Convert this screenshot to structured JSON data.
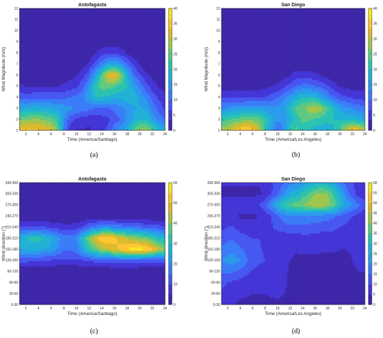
{
  "chart_data": [
    {
      "type": "contour",
      "panel": "(a)",
      "title": "Antofagasta",
      "xlabel": "Time (America/Santiago)",
      "ylabel": "Wind Magnitude (m/s)",
      "xlim": [
        1,
        24
      ],
      "ylim": [
        1,
        12
      ],
      "xticks": [
        "2",
        "4",
        "6",
        "8",
        "10",
        "12",
        "14",
        "16",
        "18",
        "20",
        "22",
        "24"
      ],
      "yticks": [
        "1",
        "2",
        "3",
        "4",
        "5",
        "6",
        "7",
        "8",
        "9",
        "10",
        "11",
        "12"
      ],
      "colorbar": {
        "min": 0,
        "max": 40,
        "ticks": [
          "0",
          "5",
          "10",
          "15",
          "20",
          "25",
          "30",
          "35",
          "40"
        ]
      },
      "z_approx": [
        {
          "y": 1.5,
          "values": [
            34,
            35,
            35,
            34,
            33,
            32,
            26,
            12,
            5,
            3,
            3,
            3,
            4,
            5,
            8,
            12,
            15,
            18,
            24,
            28,
            28,
            24,
            20,
            18
          ]
        },
        {
          "y": 2.5,
          "values": [
            26,
            26,
            27,
            27,
            26,
            25,
            22,
            14,
            8,
            6,
            5,
            4,
            4,
            5,
            6,
            8,
            10,
            14,
            17,
            20,
            20,
            16,
            12,
            10
          ]
        },
        {
          "y": 3.5,
          "values": [
            18,
            17,
            18,
            18,
            17,
            17,
            16,
            15,
            14,
            13,
            12,
            11,
            10,
            10,
            10,
            11,
            12,
            14,
            16,
            17,
            16,
            12,
            9,
            6
          ]
        },
        {
          "y": 4.5,
          "values": [
            9,
            8,
            9,
            9,
            9,
            9,
            9,
            9,
            10,
            11,
            13,
            16,
            20,
            20,
            19,
            18,
            18,
            19,
            19,
            16,
            13,
            9,
            6,
            4
          ]
        },
        {
          "y": 5.5,
          "values": [
            4,
            3,
            3,
            3,
            3,
            3,
            3,
            4,
            5,
            6,
            9,
            14,
            22,
            25,
            25,
            24,
            22,
            20,
            16,
            12,
            8,
            5,
            3,
            2
          ]
        },
        {
          "y": 6.5,
          "values": [
            1,
            1,
            1,
            1,
            1,
            1,
            1,
            1,
            2,
            3,
            5,
            9,
            16,
            24,
            32,
            34,
            28,
            18,
            11,
            7,
            4,
            2,
            1,
            1
          ]
        },
        {
          "y": 7.5,
          "values": [
            0,
            0,
            0,
            0,
            0,
            0,
            0,
            0,
            1,
            1,
            2,
            4,
            8,
            12,
            16,
            17,
            14,
            10,
            6,
            3,
            1,
            1,
            0,
            0
          ]
        },
        {
          "y": 8.5,
          "values": [
            0,
            0,
            0,
            0,
            0,
            0,
            0,
            0,
            0,
            0,
            1,
            1,
            3,
            5,
            6,
            6,
            5,
            3,
            1,
            1,
            0,
            0,
            0,
            0
          ]
        },
        {
          "y": 9.5,
          "values": [
            0,
            0,
            0,
            0,
            0,
            0,
            0,
            0,
            0,
            0,
            0,
            0,
            1,
            1,
            1,
            1,
            1,
            1,
            0,
            0,
            0,
            0,
            0,
            0
          ]
        }
      ]
    },
    {
      "type": "contour",
      "panel": "(b)",
      "title": "San Diego",
      "xlabel": "Time (America/Los Angeles)",
      "ylabel": "Wind Magnitude (m/s)",
      "xlim": [
        1,
        24
      ],
      "ylim": [
        1,
        12
      ],
      "xticks": [
        "2",
        "4",
        "6",
        "8",
        "10",
        "12",
        "14",
        "16",
        "18",
        "20",
        "22",
        "24"
      ],
      "yticks": [
        "1",
        "2",
        "3",
        "4",
        "5",
        "6",
        "7",
        "8",
        "9",
        "10",
        "11",
        "12"
      ],
      "colorbar": {
        "min": 0,
        "max": 40,
        "ticks": [
          "0",
          "5",
          "10",
          "15",
          "20",
          "25",
          "30",
          "35",
          "40"
        ]
      },
      "z_approx": [
        {
          "y": 1.5,
          "values": [
            28,
            30,
            33,
            36,
            37,
            35,
            30,
            22,
            14,
            10,
            14,
            22,
            24,
            22,
            20,
            18,
            18,
            18,
            20,
            24,
            30,
            35,
            34,
            30
          ]
        },
        {
          "y": 2.5,
          "values": [
            22,
            23,
            24,
            25,
            26,
            26,
            25,
            22,
            18,
            14,
            14,
            18,
            22,
            24,
            24,
            23,
            22,
            21,
            20,
            20,
            20,
            19,
            18,
            16
          ]
        },
        {
          "y": 3.5,
          "values": [
            14,
            14,
            15,
            15,
            16,
            16,
            16,
            15,
            14,
            14,
            16,
            20,
            24,
            26,
            28,
            30,
            28,
            24,
            20,
            16,
            14,
            13,
            12,
            11
          ]
        },
        {
          "y": 4.5,
          "values": [
            6,
            6,
            6,
            6,
            6,
            6,
            6,
            7,
            8,
            10,
            12,
            15,
            18,
            20,
            20,
            19,
            16,
            13,
            10,
            8,
            7,
            6,
            6,
            5
          ]
        },
        {
          "y": 5.5,
          "values": [
            2,
            2,
            2,
            2,
            2,
            2,
            2,
            2,
            3,
            4,
            6,
            8,
            10,
            11,
            11,
            10,
            9,
            7,
            5,
            3,
            2,
            2,
            2,
            2
          ]
        },
        {
          "y": 6.5,
          "values": [
            0,
            0,
            0,
            0,
            0,
            0,
            0,
            0,
            1,
            1,
            2,
            3,
            5,
            5,
            5,
            4,
            3,
            2,
            1,
            1,
            0,
            0,
            0,
            0
          ]
        },
        {
          "y": 7.5,
          "values": [
            0,
            0,
            0,
            0,
            0,
            0,
            0,
            0,
            0,
            0,
            1,
            1,
            1,
            1,
            1,
            1,
            1,
            0,
            0,
            0,
            0,
            0,
            0,
            0
          ]
        }
      ]
    },
    {
      "type": "contour",
      "panel": "(c)",
      "title": "Antofagasta",
      "xlabel": "Time (America/Santiago)",
      "ylabel": "Wind direction (°)",
      "xlim": [
        1,
        24
      ],
      "xticks": [
        "2",
        "4",
        "6",
        "8",
        "10",
        "12",
        "14",
        "16",
        "18",
        "20",
        "22",
        "24"
      ],
      "yticks": [
        "0-30",
        "30-60",
        "60-90",
        "90-120",
        "120-150",
        "150-180",
        "180-210",
        "210-240",
        "240-270",
        "270-300",
        "300-330",
        "330-360"
      ],
      "colorbar": {
        "min": 0,
        "max": 60,
        "ticks": [
          "0",
          "10",
          "20",
          "30",
          "40",
          "50",
          "60"
        ]
      },
      "z_approx": [
        {
          "y": "120-150",
          "values": [
            12,
            12,
            11,
            11,
            10,
            10,
            9,
            9,
            9,
            9,
            10,
            11,
            12,
            13,
            13,
            14,
            14,
            14,
            14,
            13,
            12,
            12,
            12,
            12
          ]
        },
        {
          "y": "150-180",
          "values": [
            25,
            26,
            26,
            26,
            25,
            24,
            20,
            16,
            15,
            18,
            25,
            32,
            38,
            42,
            46,
            48,
            52,
            56,
            58,
            58,
            56,
            52,
            45,
            40
          ]
        },
        {
          "y": "180-210",
          "values": [
            28,
            30,
            32,
            32,
            30,
            26,
            22,
            18,
            17,
            20,
            30,
            40,
            48,
            54,
            55,
            52,
            48,
            44,
            42,
            40,
            38,
            34,
            30,
            28
          ]
        },
        {
          "y": "210-240",
          "values": [
            10,
            10,
            10,
            10,
            10,
            9,
            8,
            7,
            7,
            8,
            11,
            15,
            18,
            20,
            20,
            19,
            18,
            17,
            16,
            15,
            14,
            13,
            12,
            11
          ]
        }
      ]
    },
    {
      "type": "contour",
      "panel": "(d)",
      "title": "San Diego",
      "xlabel": "Time (America/Los Angeles)",
      "ylabel": "Wind direction (°)",
      "xlim": [
        1,
        24
      ],
      "xticks": [
        "2",
        "4",
        "6",
        "8",
        "10",
        "12",
        "14",
        "16",
        "18",
        "20",
        "22",
        "24"
      ],
      "yticks": [
        "0-30",
        "30-60",
        "60-90",
        "90-120",
        "120-150",
        "150-180",
        "180-210",
        "210-240",
        "240-270",
        "270-300",
        "300-330",
        "330-360"
      ],
      "colorbar": {
        "min": 0,
        "max": 60,
        "ticks": [
          "0",
          "5",
          "10",
          "15",
          "20",
          "25",
          "30",
          "35",
          "40",
          "45",
          "50",
          "55",
          "60"
        ]
      },
      "z_approx": [
        {
          "y": "0-30",
          "values": [
            5,
            5,
            5,
            4,
            4,
            4,
            4,
            4,
            4,
            4,
            4,
            4,
            4,
            4,
            4,
            4,
            4,
            4,
            4,
            4,
            4,
            4,
            4,
            4
          ]
        },
        {
          "y": "60-90",
          "values": [
            12,
            10,
            9,
            8,
            7,
            6,
            6,
            6,
            7,
            8,
            6,
            4,
            4,
            4,
            4,
            4,
            4,
            4,
            4,
            4,
            4,
            4,
            4,
            4
          ]
        },
        {
          "y": "120-150",
          "values": [
            20,
            22,
            22,
            20,
            16,
            13,
            11,
            10,
            10,
            9,
            6,
            5,
            4,
            4,
            4,
            4,
            4,
            4,
            4,
            4,
            4,
            5,
            6,
            6
          ]
        },
        {
          "y": "180-210",
          "values": [
            12,
            14,
            14,
            12,
            11,
            10,
            10,
            9,
            9,
            8,
            7,
            7,
            7,
            8,
            8,
            8,
            7,
            7,
            7,
            6,
            6,
            6,
            6,
            6
          ]
        },
        {
          "y": "240-270",
          "values": [
            6,
            6,
            6,
            4,
            4,
            4,
            5,
            7,
            10,
            14,
            18,
            20,
            20,
            20,
            19,
            18,
            18,
            17,
            16,
            14,
            12,
            10,
            8,
            6
          ]
        },
        {
          "y": "270-300",
          "values": [
            8,
            8,
            8,
            8,
            8,
            9,
            10,
            14,
            20,
            28,
            34,
            36,
            38,
            40,
            42,
            44,
            44,
            42,
            38,
            30,
            24,
            20,
            16,
            12
          ]
        },
        {
          "y": "300-330",
          "values": [
            4,
            4,
            4,
            4,
            4,
            4,
            4,
            6,
            10,
            14,
            20,
            26,
            28,
            32,
            36,
            40,
            42,
            40,
            34,
            26,
            18,
            12,
            8,
            6
          ]
        }
      ]
    }
  ],
  "captions": [
    "(a)",
    "(b)",
    "(c)",
    "(d)"
  ],
  "colors": [
    "#3e26a8",
    "#4435d6",
    "#4658f1",
    "#3b7cf8",
    "#2b9bec",
    "#20b2d6",
    "#2cc2b0",
    "#60c981",
    "#a2c54e",
    "#dbba2e",
    "#fec635",
    "#f5e723"
  ]
}
